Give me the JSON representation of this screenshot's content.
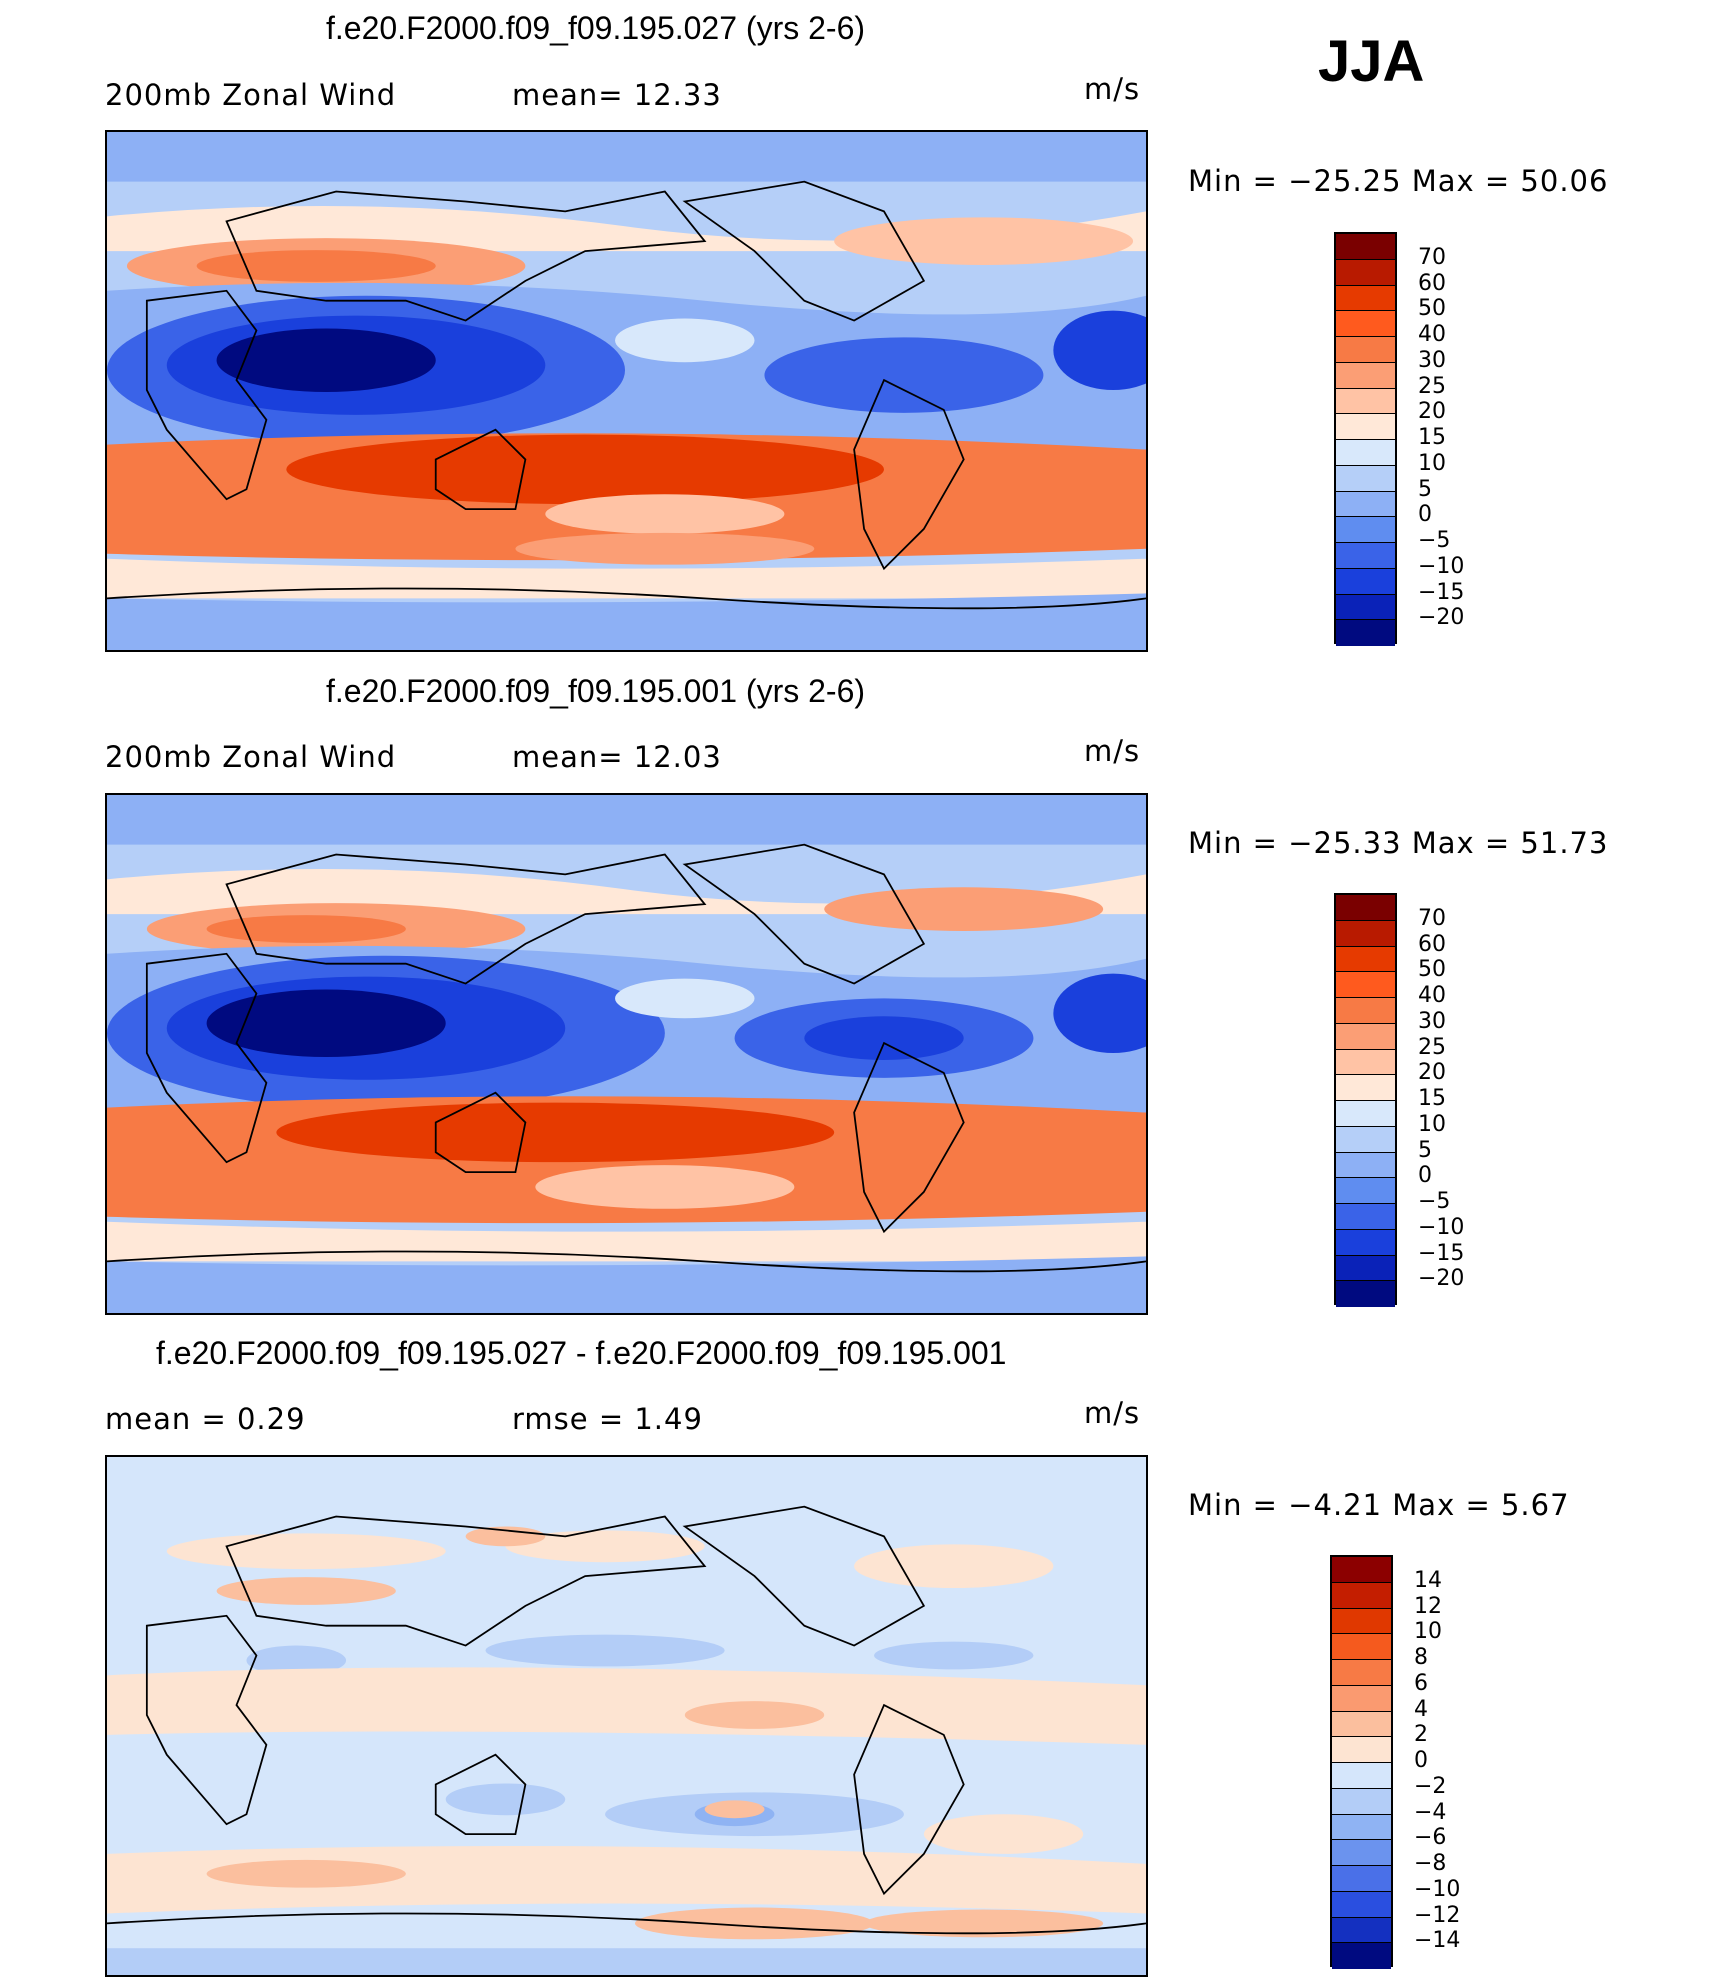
{
  "season": "JJA",
  "panels": [
    {
      "title": "f.e20.F2000.f09_f09.195.027 (yrs 2-6)",
      "left_label": "200mb  Zonal  Wind",
      "mid_label": "mean=   12.33",
      "units": "m/s",
      "minmax": "Min  =  −25.25  Max  =    50.06",
      "colorbar_labels": [
        "70",
        "60",
        "50",
        "40",
        "30",
        "25",
        "20",
        "15",
        "10",
        "5",
        "0",
        "−5",
        "−10",
        "−15",
        "−20"
      ]
    },
    {
      "title": "f.e20.F2000.f09_f09.195.001 (yrs 2-6)",
      "left_label": "200mb  Zonal  Wind",
      "mid_label": "mean=   12.03",
      "units": "m/s",
      "minmax": "Min  =  −25.33  Max  =    51.73",
      "colorbar_labels": [
        "70",
        "60",
        "50",
        "40",
        "30",
        "25",
        "20",
        "15",
        "10",
        "5",
        "0",
        "−5",
        "−10",
        "−15",
        "−20"
      ]
    },
    {
      "title": "f.e20.F2000.f09_f09.195.027 - f.e20.F2000.f09_f09.195.001",
      "left_label": "mean  =     0.29",
      "mid_label": "rmse  =     1.49",
      "units": "m/s",
      "minmax": "Min  =    −4.21  Max  =      5.67",
      "colorbar_labels": [
        "14",
        "12",
        "10",
        "8",
        "6",
        "4",
        "2",
        "0",
        "−2",
        "−4",
        "−6",
        "−8",
        "−10",
        "−12",
        "−14"
      ]
    }
  ],
  "colors": {
    "wind_scale": [
      "#7a0000",
      "#b81a00",
      "#e63a00",
      "#ff5a1e",
      "#f77a45",
      "#fb9e75",
      "#ffc3a5",
      "#ffe8d8",
      "#d8e8fb",
      "#b5cff8",
      "#8db0f5",
      "#5f8df0",
      "#3a63e8",
      "#1a40dc",
      "#0a22b8",
      "#000a80"
    ],
    "diff_scale": [
      "#8c0000",
      "#c41e00",
      "#e03800",
      "#f55a1e",
      "#f77a45",
      "#fa9a70",
      "#fbbf9e",
      "#fde4d2",
      "#d5e6fb",
      "#b3cdf7",
      "#8fb3f3",
      "#6b93ee",
      "#4a70e8",
      "#2a4fe0",
      "#1430c0",
      "#000a80"
    ]
  }
}
